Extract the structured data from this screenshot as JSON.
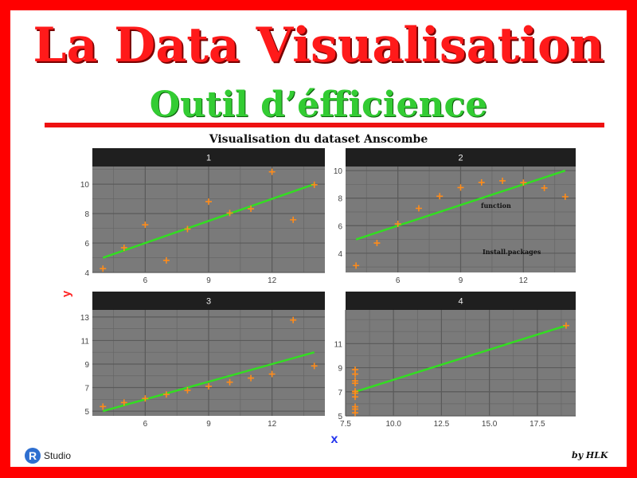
{
  "header": {
    "title": "La Data Visualisation",
    "subtitle": "Outil d’éfficience"
  },
  "chart_title": "Visualisation du dataset Anscombe",
  "chart_data": {
    "type": "scatter",
    "xlabel": "x",
    "ylabel": "y",
    "facets": [
      {
        "name": "1",
        "x": [
          10,
          8,
          13,
          9,
          11,
          14,
          6,
          4,
          12,
          7,
          5
        ],
        "y": [
          8.04,
          6.95,
          7.58,
          8.81,
          8.33,
          9.96,
          7.24,
          4.26,
          10.84,
          4.82,
          5.68
        ],
        "fit": {
          "intercept": 3.0,
          "slope": 0.5
        },
        "xlim": [
          3.5,
          14.5
        ],
        "ylim": [
          4,
          11.2
        ],
        "xticks": [
          6,
          9,
          12
        ],
        "yticks": [
          4,
          6,
          8,
          10
        ]
      },
      {
        "name": "2",
        "x": [
          10,
          8,
          13,
          9,
          11,
          14,
          6,
          4,
          12,
          7,
          5
        ],
        "y": [
          9.14,
          8.14,
          8.74,
          8.77,
          9.26,
          8.1,
          6.13,
          3.1,
          9.13,
          7.26,
          4.74
        ],
        "fit": {
          "intercept": 3.0,
          "slope": 0.5
        },
        "xlim": [
          3.5,
          14.5
        ],
        "ylim": [
          2.6,
          10.3
        ],
        "xticks": [
          6,
          9,
          12
        ],
        "yticks": [
          4,
          6,
          8,
          10
        ],
        "annotations": [
          "function",
          "Install.packages"
        ]
      },
      {
        "name": "3",
        "x": [
          10,
          8,
          13,
          9,
          11,
          14,
          6,
          4,
          12,
          7,
          5
        ],
        "y": [
          7.46,
          6.77,
          12.74,
          7.11,
          7.81,
          8.84,
          6.08,
          5.39,
          8.15,
          6.42,
          5.73
        ],
        "fit": {
          "intercept": 3.0,
          "slope": 0.5
        },
        "xlim": [
          3.5,
          14.5
        ],
        "ylim": [
          4.6,
          13.6
        ],
        "xticks": [
          6,
          9,
          12
        ],
        "yticks": [
          5,
          7,
          9,
          11,
          13
        ]
      },
      {
        "name": "4",
        "x": [
          8,
          8,
          8,
          8,
          8,
          8,
          8,
          19,
          8,
          8,
          8
        ],
        "y": [
          6.58,
          5.76,
          7.71,
          8.84,
          8.47,
          7.04,
          5.25,
          12.5,
          5.56,
          7.91,
          6.89
        ],
        "fit": {
          "intercept": 3.0,
          "slope": 0.5
        },
        "xlim": [
          7.5,
          19.5
        ],
        "ylim": [
          5,
          13.8
        ],
        "xticks": [
          7.5,
          10.0,
          12.5,
          15.0,
          17.5
        ],
        "xtick_labels": [
          "7.5",
          "10.0",
          "12.5",
          "15.0",
          "17.5"
        ],
        "yticks": [
          5,
          7,
          9,
          11
        ]
      }
    ],
    "grid": true,
    "colors": {
      "points": "#ff8c1a",
      "fit": "#33dd22",
      "panel": "#7a7a7a",
      "strip": "#1f1f1f",
      "ylabel": "#ff2222",
      "xlabel": "#2233ee"
    }
  },
  "footer": {
    "rstudio_logo": "R",
    "rstudio_text": "Studio",
    "signature": "by HLK"
  }
}
